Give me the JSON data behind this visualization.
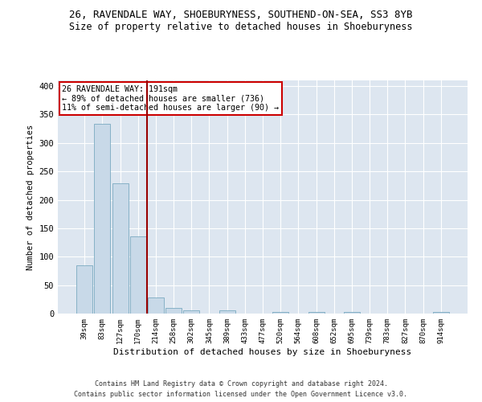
{
  "title_line1": "26, RAVENDALE WAY, SHOEBURYNESS, SOUTHEND-ON-SEA, SS3 8YB",
  "title_line2": "Size of property relative to detached houses in Shoeburyness",
  "xlabel": "Distribution of detached houses by size in Shoeburyness",
  "ylabel": "Number of detached properties",
  "categories": [
    "39sqm",
    "83sqm",
    "127sqm",
    "170sqm",
    "214sqm",
    "258sqm",
    "302sqm",
    "345sqm",
    "389sqm",
    "433sqm",
    "477sqm",
    "520sqm",
    "564sqm",
    "608sqm",
    "652sqm",
    "695sqm",
    "739sqm",
    "783sqm",
    "827sqm",
    "870sqm",
    "914sqm"
  ],
  "values": [
    85,
    334,
    229,
    136,
    28,
    10,
    5,
    0,
    5,
    0,
    0,
    3,
    0,
    3,
    0,
    3,
    0,
    0,
    0,
    0,
    3
  ],
  "bar_color": "#c8d9e8",
  "bar_edge_color": "#7aaac0",
  "vline_x": 3.5,
  "vline_color": "#990000",
  "annotation_text": "26 RAVENDALE WAY: 191sqm\n← 89% of detached houses are smaller (736)\n11% of semi-detached houses are larger (90) →",
  "annotation_box_color": "#cc0000",
  "ylim": [
    0,
    410
  ],
  "yticks": [
    0,
    50,
    100,
    150,
    200,
    250,
    300,
    350,
    400
  ],
  "background_color": "#dde6f0",
  "footer_line1": "Contains HM Land Registry data © Crown copyright and database right 2024.",
  "footer_line2": "Contains public sector information licensed under the Open Government Licence v3.0.",
  "title_fontsize": 9,
  "subtitle_fontsize": 8.5
}
